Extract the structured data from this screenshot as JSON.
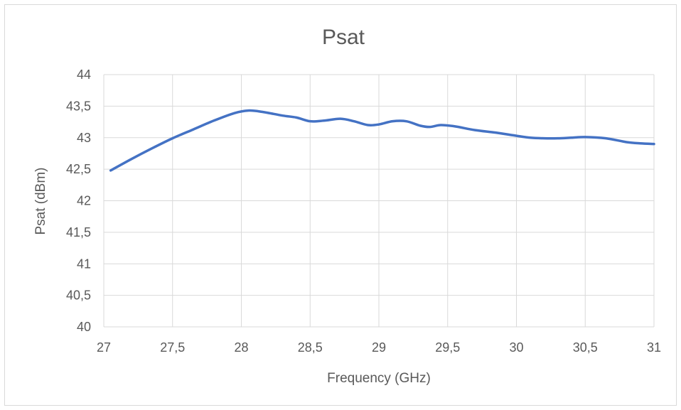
{
  "chart_data": {
    "type": "line",
    "title": "Psat",
    "xlabel": "Frequency (GHz)",
    "ylabel": "Psat (dBm)",
    "xlim": [
      27,
      31
    ],
    "ylim": [
      40,
      44
    ],
    "x_ticks": [
      27,
      27.5,
      28,
      28.5,
      29,
      29.5,
      30,
      30.5,
      31
    ],
    "x_tick_labels": [
      "27",
      "27,5",
      "28",
      "28,5",
      "29",
      "29,5",
      "30",
      "30,5",
      "31"
    ],
    "y_ticks": [
      40,
      40.5,
      41,
      41.5,
      42,
      42.5,
      43,
      43.5,
      44
    ],
    "y_tick_labels": [
      "40",
      "40,5",
      "41",
      "41,5",
      "42",
      "42,5",
      "43",
      "43,5",
      "44"
    ],
    "grid": true,
    "legend": "none",
    "line_color": "#4472C4",
    "series": [
      {
        "x": [
          27.05,
          27.2,
          27.35,
          27.5,
          27.65,
          27.8,
          27.95,
          28.05,
          28.15,
          28.3,
          28.4,
          28.5,
          28.6,
          28.72,
          28.82,
          28.92,
          29.0,
          29.1,
          29.2,
          29.3,
          29.37,
          29.45,
          29.55,
          29.7,
          29.85,
          30.0,
          30.1,
          30.2,
          30.3,
          30.4,
          30.5,
          30.65,
          30.8,
          30.9,
          31.0
        ],
        "y": [
          42.48,
          42.66,
          42.83,
          42.99,
          43.13,
          43.27,
          43.39,
          43.43,
          43.41,
          43.35,
          43.32,
          43.26,
          43.27,
          43.3,
          43.26,
          43.2,
          43.21,
          43.26,
          43.26,
          43.19,
          43.17,
          43.2,
          43.18,
          43.12,
          43.08,
          43.03,
          43.0,
          42.99,
          42.99,
          43.0,
          43.01,
          42.99,
          42.93,
          42.91,
          42.9
        ]
      }
    ]
  }
}
